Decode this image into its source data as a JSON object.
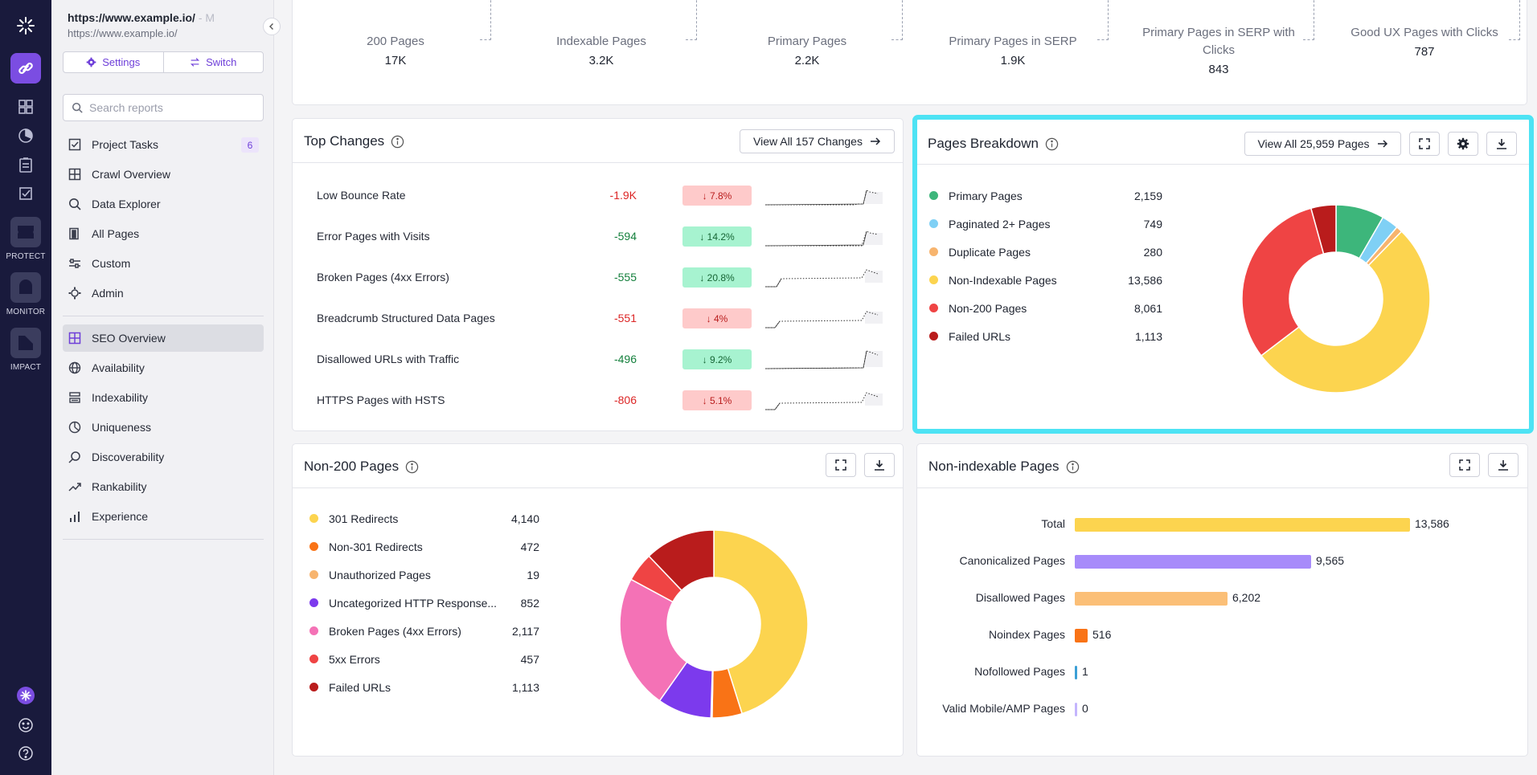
{
  "rail": {
    "products": [
      {
        "label": "PROTECT"
      },
      {
        "label": "MONITOR"
      },
      {
        "label": "IMPACT"
      }
    ]
  },
  "sidebar": {
    "url_primary": "https://www.example.io/",
    "url_primary_suffix": " - M",
    "url_secondary": "https://www.example.io/",
    "settings_label": "Settings",
    "switch_label": "Switch",
    "search_placeholder": "Search reports",
    "nav_top": [
      {
        "label": "Project Tasks",
        "badge": "6",
        "icon": "checkbox-icon"
      },
      {
        "label": "Crawl Overview",
        "icon": "grid-icon"
      },
      {
        "label": "Data Explorer",
        "icon": "search-icon"
      },
      {
        "label": "All Pages",
        "icon": "pages-icon"
      },
      {
        "label": "Custom",
        "icon": "sliders-icon"
      },
      {
        "label": "Admin",
        "icon": "gear-icon"
      }
    ],
    "nav_seo": [
      {
        "label": "SEO Overview",
        "icon": "grid-icon",
        "active": true
      },
      {
        "label": "Availability",
        "icon": "globe-icon"
      },
      {
        "label": "Indexability",
        "icon": "stack-icon"
      },
      {
        "label": "Uniqueness",
        "icon": "pie-icon"
      },
      {
        "label": "Discoverability",
        "icon": "magnifier-icon"
      },
      {
        "label": "Rankability",
        "icon": "trend-icon"
      },
      {
        "label": "Experience",
        "icon": "bar-icon"
      }
    ]
  },
  "metrics": [
    {
      "label": "200 Pages",
      "value": "17K"
    },
    {
      "label": "Indexable Pages",
      "value": "3.2K"
    },
    {
      "label": "Primary Pages",
      "value": "2.2K"
    },
    {
      "label": "Primary Pages in SERP",
      "value": "1.9K"
    },
    {
      "label": "Primary Pages in SERP with Clicks",
      "value": "843"
    },
    {
      "label": "Good UX Pages with Clicks",
      "value": "787"
    }
  ],
  "top_changes": {
    "title": "Top Changes",
    "view_all_label": "View All 157 Changes",
    "rows": [
      {
        "label": "Low Bounce Rate",
        "value": "-1.9K",
        "pct": "↓ 7.8%",
        "trend": "bad"
      },
      {
        "label": "Error Pages with Visits",
        "value": "-594",
        "pct": "↓ 14.2%",
        "trend": "good"
      },
      {
        "label": "Broken Pages (4xx Errors)",
        "value": "-555",
        "pct": "↓ 20.8%",
        "trend": "good"
      },
      {
        "label": "Breadcrumb Structured Data Pages",
        "value": "-551",
        "pct": "↓ 4%",
        "trend": "bad"
      },
      {
        "label": "Disallowed URLs with Traffic",
        "value": "-496",
        "pct": "↓ 9.2%",
        "trend": "good"
      },
      {
        "label": "HTTPS Pages with HSTS",
        "value": "-806",
        "pct": "↓ 5.1%",
        "trend": "bad"
      }
    ]
  },
  "pages_breakdown": {
    "title": "Pages Breakdown",
    "view_all_label": "View All 25,959 Pages",
    "legend": [
      {
        "label": "Primary Pages",
        "value": "2,159",
        "color": "#3db67b"
      },
      {
        "label": "Paginated 2+ Pages",
        "value": "749",
        "color": "#7fd0f5"
      },
      {
        "label": "Duplicate Pages",
        "value": "280",
        "color": "#f7b46e"
      },
      {
        "label": "Non-Indexable Pages",
        "value": "13,586",
        "color": "#fcd44f"
      },
      {
        "label": "Non-200 Pages",
        "value": "8,061",
        "color": "#ef4444"
      },
      {
        "label": "Failed URLs",
        "value": "1,113",
        "color": "#b91c1c"
      }
    ]
  },
  "non200": {
    "title": "Non-200 Pages",
    "legend": [
      {
        "label": "301 Redirects",
        "value": "4,140",
        "color": "#fcd44f"
      },
      {
        "label": "Non-301 Redirects",
        "value": "472",
        "color": "#f97316"
      },
      {
        "label": "Unauthorized Pages",
        "value": "19",
        "color": "#f7b46e"
      },
      {
        "label": "Uncategorized HTTP Response...",
        "value": "852",
        "color": "#7c3aed"
      },
      {
        "label": "Broken Pages (4xx Errors)",
        "value": "2,117",
        "color": "#f472b6"
      },
      {
        "label": "5xx Errors",
        "value": "457",
        "color": "#ef4444"
      },
      {
        "label": "Failed URLs",
        "value": "1,113",
        "color": "#b91c1c"
      }
    ]
  },
  "non_indexable": {
    "title": "Non-indexable Pages",
    "bars": [
      {
        "label": "Total",
        "value": 13586,
        "display": "13,586",
        "color": "#fcd44f"
      },
      {
        "label": "Canonicalized Pages",
        "value": 9565,
        "display": "9,565",
        "color": "#a78bfa"
      },
      {
        "label": "Disallowed Pages",
        "value": 6202,
        "display": "6,202",
        "color": "#fbbf77"
      },
      {
        "label": "Noindex Pages",
        "value": 516,
        "display": "516",
        "color": "#f97316"
      },
      {
        "label": "Nofollowed Pages",
        "value": 1,
        "display": "1",
        "color": "#3b9fd6"
      },
      {
        "label": "Valid Mobile/AMP Pages",
        "value": 0,
        "display": "0",
        "color": "#c4b5fd"
      }
    ]
  },
  "colors": {
    "accent": "#6e3fd9",
    "highlight_border": "#4de3f4",
    "good_bg": "#a7f3d0",
    "good_fg": "#15803d",
    "bad_bg": "#fecaca",
    "bad_fg": "#dc2626"
  }
}
